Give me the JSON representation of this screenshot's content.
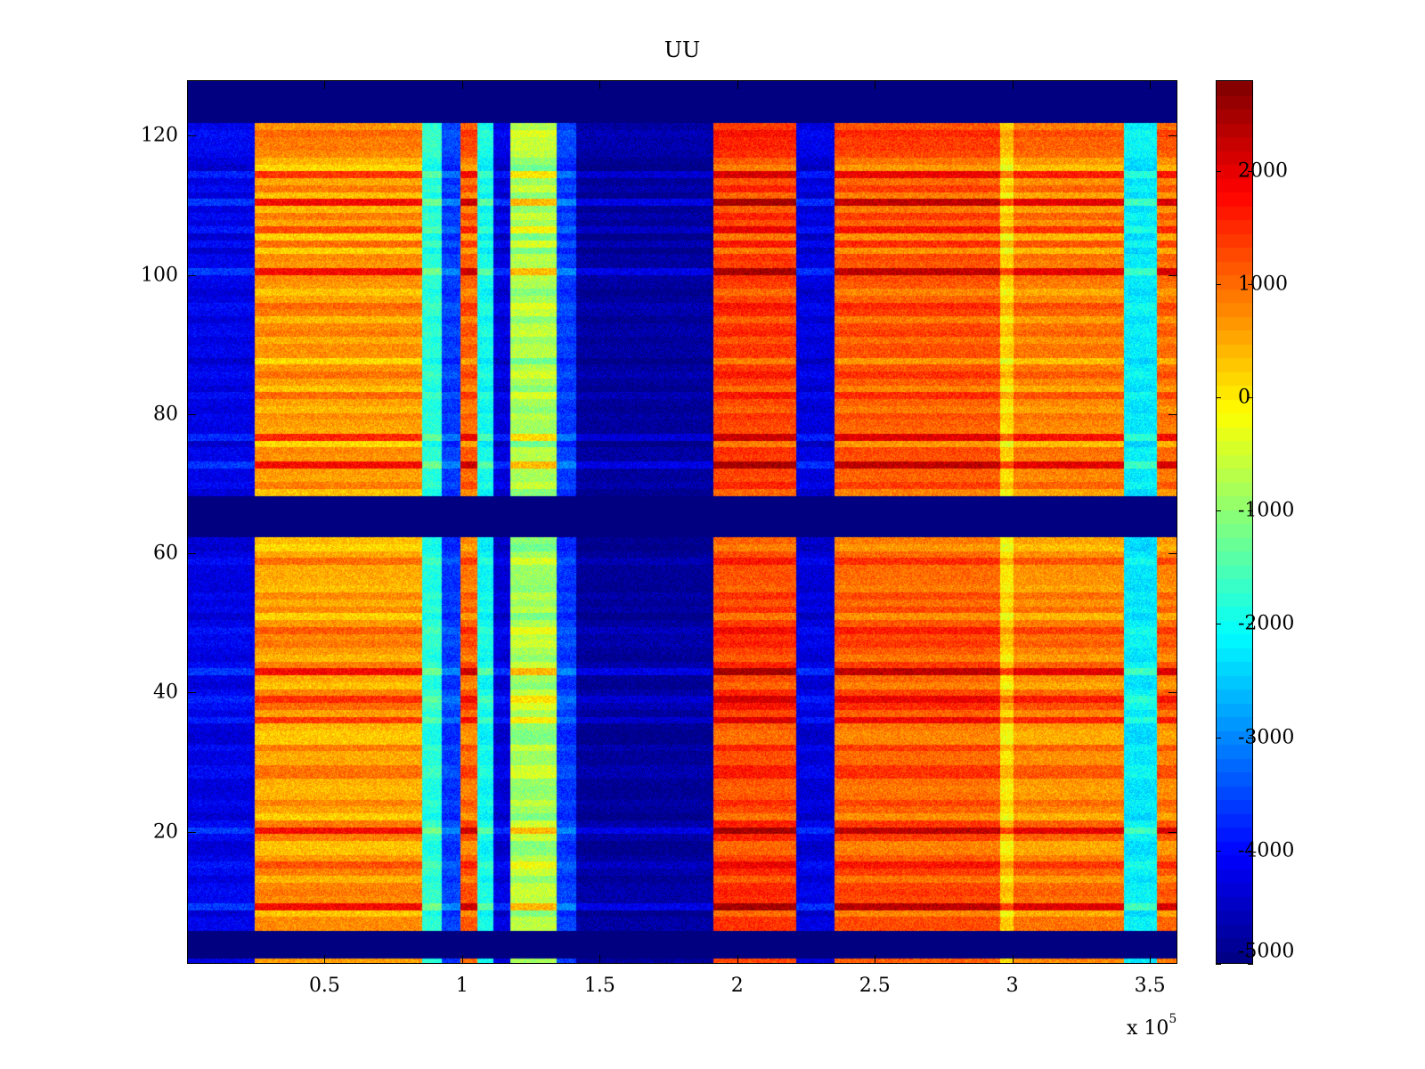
{
  "chart_data": {
    "type": "heatmap",
    "title": "UU",
    "xlabel": "",
    "ylabel": "",
    "x_multiplier_base": "x 10",
    "x_multiplier_exp": "5",
    "xlim": [
      0,
      3.6
    ],
    "ylim": [
      1,
      128
    ],
    "xticks": [
      {
        "value": 0.5,
        "label": "0.5"
      },
      {
        "value": 1,
        "label": "1"
      },
      {
        "value": 1.5,
        "label": "1.5"
      },
      {
        "value": 2,
        "label": "2"
      },
      {
        "value": 2.5,
        "label": "2.5"
      },
      {
        "value": 3,
        "label": "3"
      },
      {
        "value": 3.5,
        "label": "3.5"
      }
    ],
    "yticks": [
      {
        "value": 20,
        "label": "20"
      },
      {
        "value": 40,
        "label": "40"
      },
      {
        "value": 60,
        "label": "60"
      },
      {
        "value": 80,
        "label": "80"
      },
      {
        "value": 100,
        "label": "100"
      },
      {
        "value": 120,
        "label": "120"
      }
    ],
    "colorbar": {
      "colormap": "jet",
      "clim": [
        -5000,
        2800
      ],
      "ticks": [
        {
          "value": 2000,
          "label": "2000"
        },
        {
          "value": 1000,
          "label": "1000"
        },
        {
          "value": 0,
          "label": "0"
        },
        {
          "value": -1000,
          "label": "-1000"
        },
        {
          "value": -2000,
          "label": "-2000"
        },
        {
          "value": -3000,
          "label": "-3000"
        },
        {
          "value": -4000,
          "label": "-4000"
        },
        {
          "value": -5000,
          "label": "-5000"
        }
      ]
    },
    "empty_rows": [
      [
        1,
        4
      ],
      [
        62,
        67
      ],
      [
        122,
        128
      ]
    ],
    "column_bands": [
      {
        "x0": 0.0,
        "x1": 0.24,
        "level": -4200
      },
      {
        "x0": 0.24,
        "x1": 0.85,
        "level": 600
      },
      {
        "x0": 0.85,
        "x1": 0.92,
        "level": -1800
      },
      {
        "x0": 0.92,
        "x1": 0.99,
        "level": -3600
      },
      {
        "x0": 0.99,
        "x1": 1.05,
        "level": 1000
      },
      {
        "x0": 1.05,
        "x1": 1.11,
        "level": -2000
      },
      {
        "x0": 1.11,
        "x1": 1.17,
        "level": -4300
      },
      {
        "x0": 1.17,
        "x1": 1.34,
        "level": -800
      },
      {
        "x0": 1.34,
        "x1": 1.41,
        "level": -3600
      },
      {
        "x0": 1.41,
        "x1": 1.91,
        "level": -4800
      },
      {
        "x0": 1.91,
        "x1": 2.21,
        "level": 1300
      },
      {
        "x0": 2.21,
        "x1": 2.35,
        "level": -4300
      },
      {
        "x0": 2.35,
        "x1": 2.95,
        "level": 1100
      },
      {
        "x0": 2.95,
        "x1": 3.0,
        "level": 100
      },
      {
        "x0": 3.0,
        "x1": 3.4,
        "level": 800
      },
      {
        "x0": 3.4,
        "x1": 3.52,
        "level": -2200
      },
      {
        "x0": 3.52,
        "x1": 3.61,
        "level": 900
      }
    ],
    "hot_rows": [
      8,
      14,
      19,
      35,
      38,
      42,
      48,
      72,
      76,
      100,
      106,
      110,
      114
    ],
    "value_range": [
      -5000,
      2800
    ]
  }
}
